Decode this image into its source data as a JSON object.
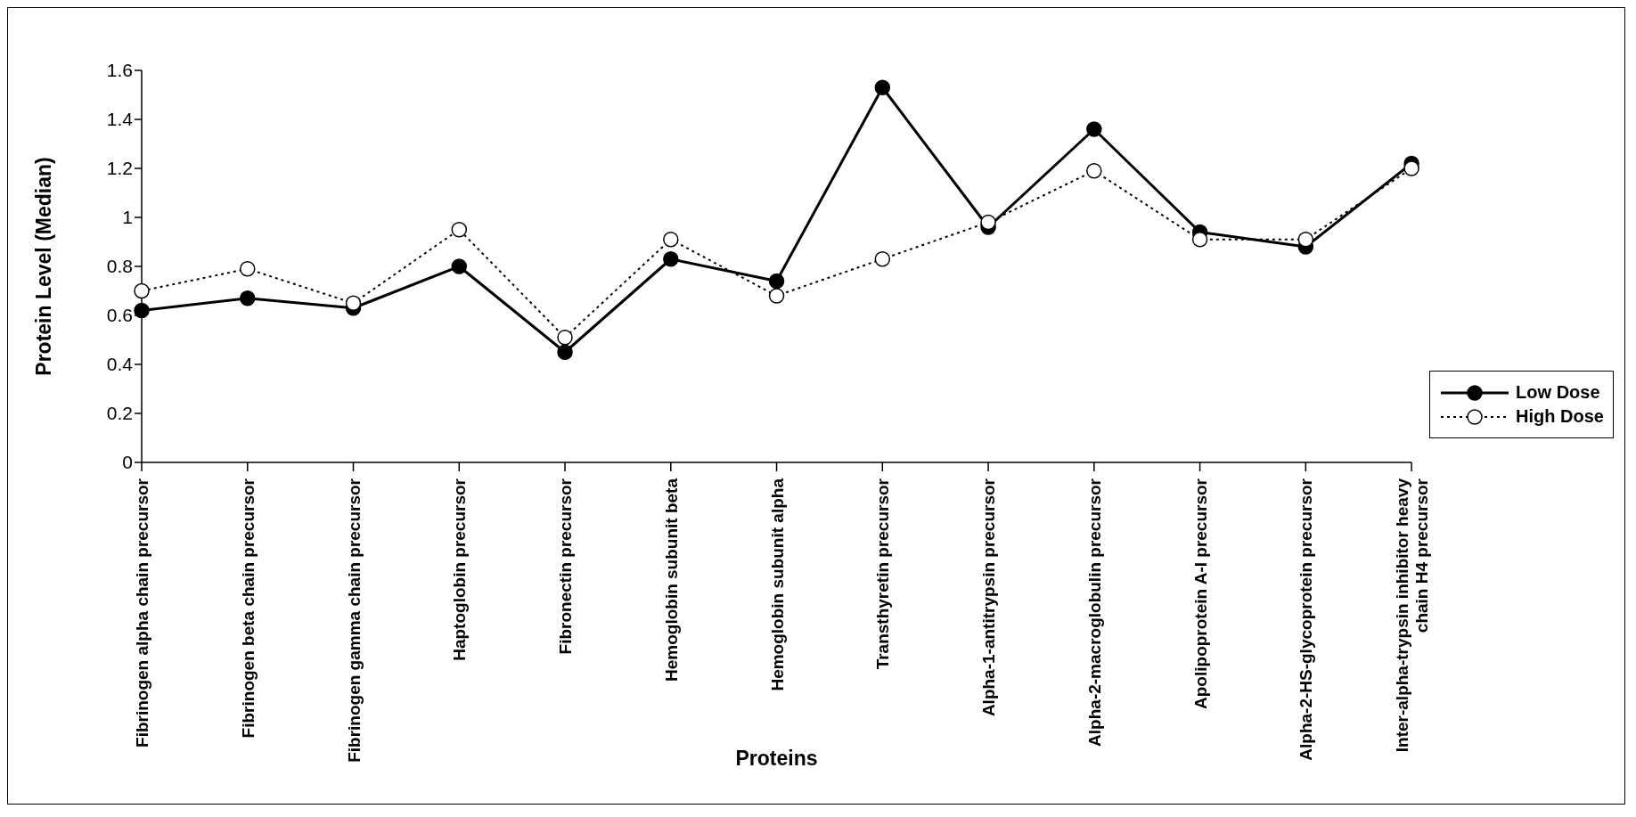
{
  "chart_data": {
    "type": "line",
    "xlabel": "Proteins",
    "ylabel": "Protein Level (Median)",
    "categories": [
      "Fibrinogen alpha chain precursor",
      "Fibrinogen beta chain precursor",
      "Fibrinogen gamma chain precursor",
      "Haptoglobin precursor",
      "Fibronectin precursor",
      "Hemoglobin subunit beta",
      "Hemoglobin subunit alpha",
      "Transthyretin precursor",
      "Alpha-1-antitrypsin precursor",
      "Alpha-2-macroglobulin precursor",
      "Apolipoprotein A-I precursor",
      "Alpha-2-HS-glycoprotein precursor",
      "Inter-alpha-trypsin inhibitor heavy chain H4 precursor"
    ],
    "series": [
      {
        "name": "Low Dose",
        "color": "#000000",
        "line_style": "solid",
        "values": [
          0.62,
          0.67,
          0.63,
          0.8,
          0.45,
          0.83,
          0.74,
          1.53,
          0.96,
          1.36,
          0.94,
          0.88,
          1.22
        ]
      },
      {
        "name": "High Dose",
        "color": "#000000",
        "line_style": "dotted",
        "values": [
          0.7,
          0.79,
          0.65,
          0.95,
          0.51,
          0.91,
          0.68,
          0.83,
          0.98,
          1.19,
          0.91,
          0.91,
          1.2
        ]
      }
    ],
    "ylim": [
      0,
      1.6
    ],
    "yticks": [
      0,
      0.2,
      0.4,
      0.6,
      0.8,
      1,
      1.2,
      1.4,
      1.6
    ],
    "marker": "circle",
    "grid": false,
    "legend": "right"
  }
}
